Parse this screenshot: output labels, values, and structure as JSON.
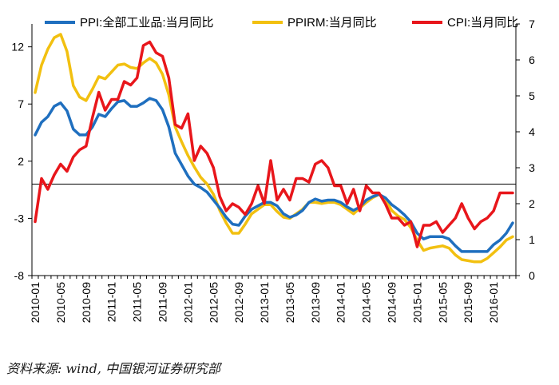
{
  "chart_data": {
    "type": "line",
    "title": "",
    "categories": [
      "2010-01",
      "2010-02",
      "2010-03",
      "2010-04",
      "2010-05",
      "2010-06",
      "2010-07",
      "2010-08",
      "2010-09",
      "2010-10",
      "2010-11",
      "2010-12",
      "2011-01",
      "2011-02",
      "2011-03",
      "2011-04",
      "2011-05",
      "2011-06",
      "2011-07",
      "2011-08",
      "2011-09",
      "2011-10",
      "2011-11",
      "2011-12",
      "2012-01",
      "2012-02",
      "2012-03",
      "2012-04",
      "2012-05",
      "2012-06",
      "2012-07",
      "2012-08",
      "2012-09",
      "2012-10",
      "2012-11",
      "2012-12",
      "2013-01",
      "2013-02",
      "2013-03",
      "2013-04",
      "2013-05",
      "2013-06",
      "2013-07",
      "2013-08",
      "2013-09",
      "2013-10",
      "2013-11",
      "2013-12",
      "2014-01",
      "2014-02",
      "2014-03",
      "2014-04",
      "2014-05",
      "2014-06",
      "2014-07",
      "2014-08",
      "2014-09",
      "2014-10",
      "2014-11",
      "2014-12",
      "2015-01",
      "2015-02",
      "2015-03",
      "2015-04",
      "2015-05",
      "2015-06",
      "2015-07",
      "2015-08",
      "2015-09",
      "2015-10",
      "2015-11",
      "2015-12",
      "2016-01",
      "2016-02",
      "2016-03",
      "2016-04"
    ],
    "x_tick_labels": [
      "2010-01",
      "2010-05",
      "2010-09",
      "2011-01",
      "2011-05",
      "2011-09",
      "2012-01",
      "2012-05",
      "2012-09",
      "2013-01",
      "2013-05",
      "2013-09",
      "2014-01",
      "2014-05",
      "2014-09",
      "2015-01",
      "2015-05",
      "2015-09",
      "2016-01"
    ],
    "left_axis": {
      "min": -8,
      "max": 14,
      "ticks": [
        -8,
        -3,
        2,
        7,
        12
      ]
    },
    "right_axis": {
      "min": 0,
      "max": 7,
      "ticks": [
        0,
        1,
        2,
        3,
        4,
        5,
        6,
        7
      ]
    },
    "series": [
      {
        "name": "PPI:全部工业品:当月同比",
        "axis": "left",
        "color": "#1f6fbf",
        "values": [
          4.3,
          5.4,
          5.9,
          6.8,
          7.1,
          6.4,
          4.8,
          4.3,
          4.3,
          5.0,
          6.1,
          5.9,
          6.6,
          7.2,
          7.3,
          6.8,
          6.8,
          7.1,
          7.5,
          7.3,
          6.5,
          5.0,
          2.7,
          1.7,
          0.7,
          0.0,
          -0.3,
          -0.7,
          -1.4,
          -2.1,
          -2.9,
          -3.5,
          -3.6,
          -2.8,
          -2.2,
          -1.9,
          -1.6,
          -1.6,
          -1.9,
          -2.6,
          -2.9,
          -2.7,
          -2.3,
          -1.6,
          -1.3,
          -1.5,
          -1.4,
          -1.4,
          -1.6,
          -2.0,
          -2.3,
          -2.0,
          -1.4,
          -1.1,
          -0.9,
          -1.2,
          -1.8,
          -2.2,
          -2.7,
          -3.3,
          -4.3,
          -4.8,
          -4.6,
          -4.6,
          -4.6,
          -4.8,
          -5.4,
          -5.9,
          -5.9,
          -5.9,
          -5.9,
          -5.9,
          -5.3,
          -4.9,
          -4.3,
          -3.4
        ]
      },
      {
        "name": "PPIRM:当月同比",
        "axis": "left",
        "color": "#f2c010",
        "values": [
          8.0,
          10.4,
          11.8,
          12.8,
          13.1,
          11.6,
          8.6,
          7.6,
          7.3,
          8.3,
          9.4,
          9.2,
          9.8,
          10.4,
          10.5,
          10.2,
          10.1,
          10.6,
          11.0,
          10.6,
          9.6,
          7.8,
          5.0,
          3.7,
          2.5,
          1.5,
          0.6,
          0.0,
          -0.9,
          -2.3,
          -3.4,
          -4.3,
          -4.3,
          -3.5,
          -2.6,
          -2.2,
          -1.8,
          -1.8,
          -2.4,
          -2.9,
          -3.0,
          -2.6,
          -2.2,
          -1.6,
          -1.6,
          -1.7,
          -1.6,
          -1.6,
          -1.8,
          -2.2,
          -2.6,
          -2.1,
          -1.6,
          -1.2,
          -0.9,
          -1.3,
          -2.3,
          -2.8,
          -3.1,
          -3.8,
          -4.9,
          -5.8,
          -5.6,
          -5.5,
          -5.4,
          -5.6,
          -6.2,
          -6.6,
          -6.7,
          -6.8,
          -6.8,
          -6.5,
          -6.0,
          -5.5,
          -4.9,
          -4.6
        ]
      },
      {
        "name": "CPI:当月同比",
        "axis": "right",
        "color": "#e8161b",
        "values": [
          1.5,
          2.7,
          2.4,
          2.8,
          3.1,
          2.9,
          3.3,
          3.5,
          3.6,
          4.4,
          5.1,
          4.6,
          4.9,
          4.9,
          5.4,
          5.3,
          5.5,
          6.4,
          6.5,
          6.2,
          6.1,
          5.5,
          4.2,
          4.1,
          4.5,
          3.2,
          3.6,
          3.4,
          3.0,
          2.2,
          1.8,
          2.0,
          1.9,
          1.7,
          2.0,
          2.5,
          2.0,
          3.2,
          2.1,
          2.4,
          2.1,
          2.7,
          2.7,
          2.6,
          3.1,
          3.2,
          3.0,
          2.5,
          2.5,
          2.0,
          2.4,
          1.8,
          2.5,
          2.3,
          2.3,
          2.0,
          1.6,
          1.6,
          1.4,
          1.5,
          0.8,
          1.4,
          1.4,
          1.5,
          1.2,
          1.4,
          1.6,
          2.0,
          1.6,
          1.3,
          1.5,
          1.6,
          1.8,
          2.3,
          2.3,
          2.3
        ]
      }
    ],
    "legend_position": "top",
    "grid": false
  },
  "source_note": "资料来源: wind, 中国银河证券研究部"
}
